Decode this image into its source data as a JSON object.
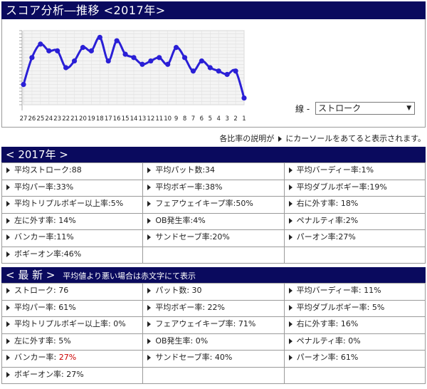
{
  "title": "スコア分析―推移 <2017年>",
  "line_select": {
    "label": "線 -",
    "value": "ストローク"
  },
  "hint": {
    "before": "各比率の説明が",
    "after": "にカーソールをあてると表示されます。"
  },
  "chart_data": {
    "type": "line",
    "x": [
      "27",
      "26",
      "25",
      "24",
      "23",
      "22",
      "21",
      "20",
      "19",
      "18",
      "17",
      "16",
      "15",
      "14",
      "13",
      "12",
      "11",
      "10",
      "9",
      "8",
      "7",
      "6",
      "5",
      "4",
      "3",
      "2",
      "1"
    ],
    "values": [
      92,
      84,
      80,
      82,
      82,
      87,
      85,
      81,
      82,
      78,
      85,
      79,
      83,
      84,
      86,
      85,
      84,
      86,
      81,
      84,
      88,
      85,
      87,
      88,
      89,
      88,
      96
    ],
    "ylim": [
      76,
      98
    ],
    "grid": true,
    "color": "#2a1fd6"
  },
  "season": {
    "header": "< 2017年 >",
    "rows": [
      [
        "平均ストローク:88",
        "平均パット数:34",
        "平均バーディー率:1%"
      ],
      [
        "平均パー率:33%",
        "平均ボギー率:38%",
        "平均ダブルボギー率:19%"
      ],
      [
        "平均トリプルボギー以上率:5%",
        "フェアウェイキープ率:50%",
        "右に外す率: 18%"
      ],
      [
        "左に外す率: 14%",
        "OB発生率:4%",
        "ペナルティ率:2%"
      ],
      [
        "バンカー率:11%",
        "サンドセーブ率:20%",
        "パーオン率:27%"
      ],
      [
        "ボギーオン率:46%",
        "",
        ""
      ]
    ]
  },
  "latest": {
    "header": "< 最 新 >",
    "note": "平均値より悪い場合は赤文字にて表示",
    "rows": [
      [
        "ストローク: 76",
        "パット数: 30",
        "平均バーディー率: 11%"
      ],
      [
        "平均パー率: 61%",
        "平均ボギー率: 22%",
        "平均ダブルボギー率: 5%"
      ],
      [
        "平均トリプルボギー以上率: 0%",
        "フェアウェイキープ率: 71%",
        "右に外す率: 16%"
      ],
      [
        "左に外す率: 5%",
        "OB発生率: 0%",
        "ペナルティ率: 0%"
      ],
      [
        "バンカー率: ",
        "サンドセーブ率: 40%",
        "パーオン率: 61%"
      ],
      [
        "ボギーオン率: 27%",
        "",
        ""
      ]
    ],
    "bunker_value": "27%"
  }
}
